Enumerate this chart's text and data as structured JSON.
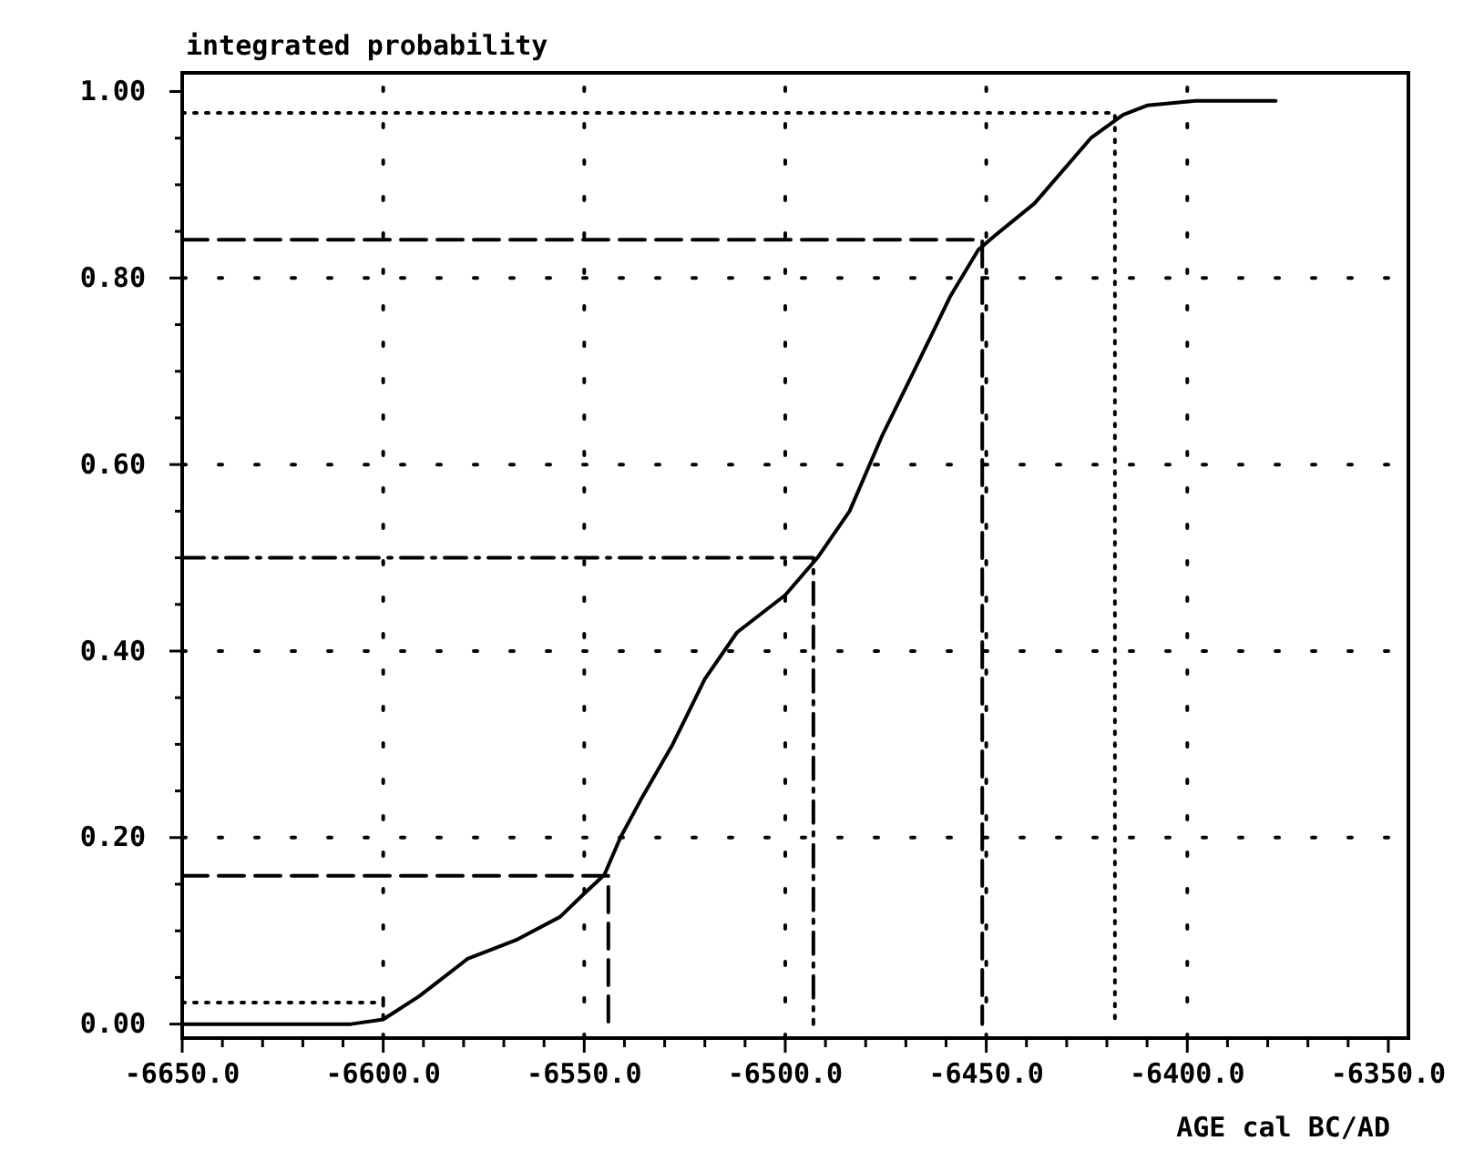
{
  "chart_data": {
    "type": "line",
    "ylabel": "integrated probability",
    "xlabel": "AGE cal BC/AD",
    "xlim": [
      -6650,
      -6345
    ],
    "ylim": [
      -0.015,
      1.02
    ],
    "xticks": [
      {
        "value": -6650,
        "label": "-6650.0"
      },
      {
        "value": -6640,
        "label": null
      },
      {
        "value": -6630,
        "label": null
      },
      {
        "value": -6620,
        "label": null
      },
      {
        "value": -6610,
        "label": null
      },
      {
        "value": -6600,
        "label": "-6600.0"
      },
      {
        "value": -6590,
        "label": null
      },
      {
        "value": -6580,
        "label": null
      },
      {
        "value": -6570,
        "label": null
      },
      {
        "value": -6560,
        "label": null
      },
      {
        "value": -6550,
        "label": "-6550.0"
      },
      {
        "value": -6540,
        "label": null
      },
      {
        "value": -6530,
        "label": null
      },
      {
        "value": -6520,
        "label": null
      },
      {
        "value": -6510,
        "label": null
      },
      {
        "value": -6500,
        "label": "-6500.0"
      },
      {
        "value": -6490,
        "label": null
      },
      {
        "value": -6480,
        "label": null
      },
      {
        "value": -6470,
        "label": null
      },
      {
        "value": -6460,
        "label": null
      },
      {
        "value": -6450,
        "label": "-6450.0"
      },
      {
        "value": -6440,
        "label": null
      },
      {
        "value": -6430,
        "label": null
      },
      {
        "value": -6420,
        "label": null
      },
      {
        "value": -6410,
        "label": null
      },
      {
        "value": -6400,
        "label": "-6400.0"
      },
      {
        "value": -6390,
        "label": null
      },
      {
        "value": -6380,
        "label": null
      },
      {
        "value": -6370,
        "label": null
      },
      {
        "value": -6360,
        "label": null
      },
      {
        "value": -6350,
        "label": "-6350.0"
      }
    ],
    "yticks": [
      {
        "value": 0,
        "label": "0.00"
      },
      {
        "value": 0.05,
        "label": null
      },
      {
        "value": 0.1,
        "label": null
      },
      {
        "value": 0.15,
        "label": null
      },
      {
        "value": 0.2,
        "label": "0.20"
      },
      {
        "value": 0.25,
        "label": null
      },
      {
        "value": 0.3,
        "label": null
      },
      {
        "value": 0.35,
        "label": null
      },
      {
        "value": 0.4,
        "label": "0.40"
      },
      {
        "value": 0.45,
        "label": null
      },
      {
        "value": 0.5,
        "label": null
      },
      {
        "value": 0.55,
        "label": null
      },
      {
        "value": 0.6,
        "label": "0.60"
      },
      {
        "value": 0.65,
        "label": null
      },
      {
        "value": 0.7,
        "label": null
      },
      {
        "value": 0.75,
        "label": null
      },
      {
        "value": 0.8,
        "label": "0.80"
      },
      {
        "value": 0.85,
        "label": null
      },
      {
        "value": 0.9,
        "label": null
      },
      {
        "value": 0.95,
        "label": null
      },
      {
        "value": 1.0,
        "label": "1.00"
      }
    ],
    "grid": true,
    "marker": "none",
    "series": [
      {
        "color": "#000000",
        "line_style": "solid",
        "x": [
          -6650,
          -6608,
          -6600,
          -6591,
          -6579,
          -6567,
          -6556,
          -6550,
          -6545,
          -6541,
          -6536,
          -6528,
          -6520,
          -6512,
          -6500,
          -6492,
          -6484,
          -6476,
          -6468,
          -6459,
          -6452,
          -6448,
          -6438,
          -6424,
          -6416,
          -6410,
          -6398,
          -6378
        ],
        "values": [
          0,
          0,
          0.005,
          0.03,
          0.07,
          0.09,
          0.115,
          0.14,
          0.16,
          0.2,
          0.24,
          0.3,
          0.37,
          0.42,
          0.46,
          0.5,
          0.55,
          0.63,
          0.7,
          0.78,
          0.83,
          0.845,
          0.88,
          0.95,
          0.975,
          0.985,
          0.99,
          0.99
        ]
      },
      {
        "color": "#000000",
        "line_style": "dotted",
        "x": [
          -6650,
          -6600,
          -6600
        ],
        "values": [
          0.023,
          0.023,
          0
        ]
      },
      {
        "color": "#000000",
        "line_style": "dashed",
        "x": [
          -6650,
          -6544,
          -6544
        ],
        "values": [
          0.159,
          0.159,
          0
        ]
      },
      {
        "color": "#000000",
        "line_style": "dashdot",
        "x": [
          -6650,
          -6493,
          -6493
        ],
        "values": [
          0.5,
          0.5,
          0
        ]
      },
      {
        "color": "#000000",
        "line_style": "dashed",
        "x": [
          -6650,
          -6451,
          -6451
        ],
        "values": [
          0.841,
          0.841,
          0
        ]
      },
      {
        "color": "#000000",
        "line_style": "dotted",
        "x": [
          -6650,
          -6418,
          -6418
        ],
        "values": [
          0.977,
          0.977,
          0
        ]
      }
    ]
  }
}
